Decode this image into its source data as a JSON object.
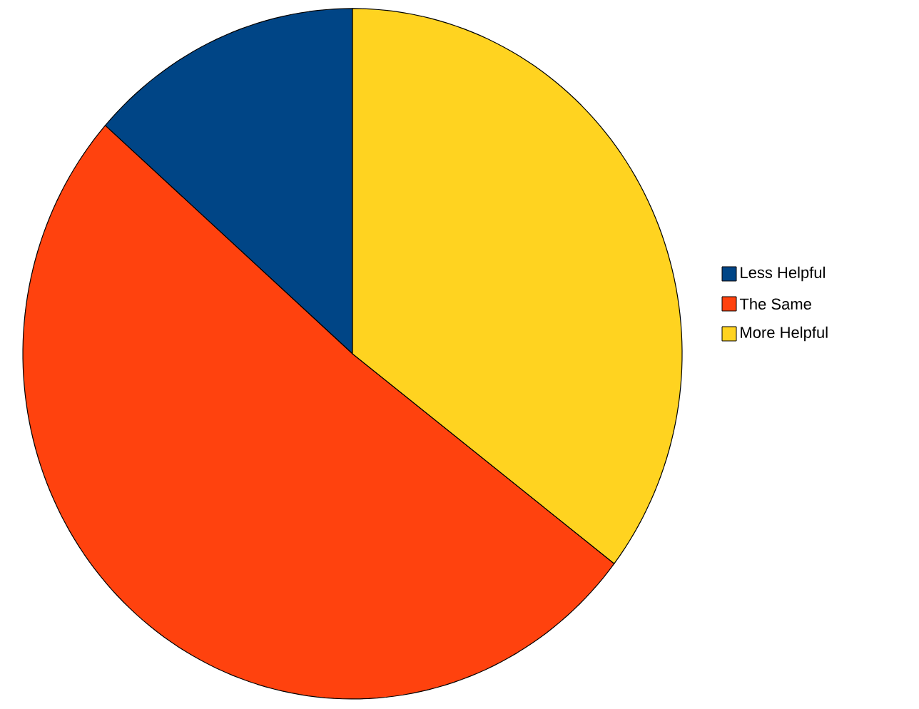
{
  "chart_data": {
    "type": "pie",
    "categories": [
      "Less Helpful",
      "The Same",
      "More Helpful"
    ],
    "values": [
      13.5,
      51.1,
      35.4
    ],
    "colors": [
      "#004586",
      "#ff420e",
      "#ffd320"
    ],
    "legend": "right"
  }
}
